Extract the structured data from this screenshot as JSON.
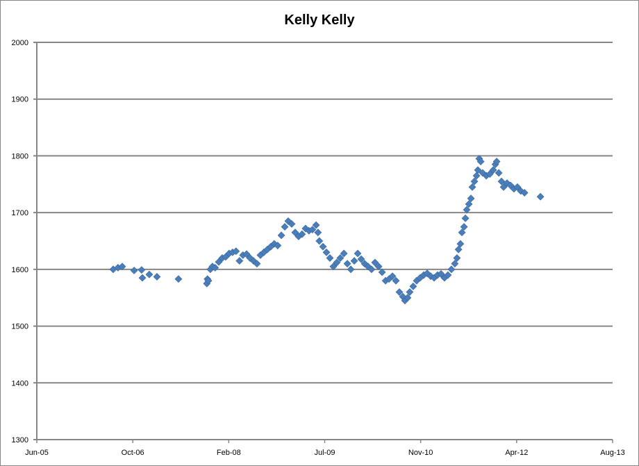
{
  "chart_data": {
    "type": "scatter",
    "title": "Kelly Kelly",
    "xlabel": "",
    "ylabel": "",
    "x_axis": {
      "type": "date",
      "min": "2005-06-01",
      "max": "2013-08-18",
      "major_unit_days": 500,
      "tick_labels": [
        "Jun-05",
        "Oct-06",
        "Feb-08",
        "Jul-09",
        "Nov-10",
        "Apr-12",
        "Aug-13"
      ]
    },
    "y_axis": {
      "min": 1300,
      "max": 2000,
      "major_unit": 100,
      "tick_labels": [
        "1300",
        "1400",
        "1500",
        "1600",
        "1700",
        "1800",
        "1900",
        "2000"
      ]
    },
    "grid": {
      "horizontal": true,
      "vertical": false
    },
    "legend": "none",
    "marker": "diamond",
    "colors": {
      "marker": "#4a7ebb",
      "marker_edge": "#3b679c",
      "grid": "#868686"
    },
    "points": [
      [
        "2006-07-04",
        1600
      ],
      [
        "2006-07-29",
        1603
      ],
      [
        "2006-08-20",
        1605
      ],
      [
        "2006-10-21",
        1598
      ],
      [
        "2006-11-29",
        1599
      ],
      [
        "2006-12-03",
        1585
      ],
      [
        "2007-01-08",
        1591
      ],
      [
        "2007-02-17",
        1587
      ],
      [
        "2007-06-09",
        1583
      ],
      [
        "2007-11-04",
        1575
      ],
      [
        "2007-11-07",
        1583
      ],
      [
        "2007-11-12",
        1580
      ],
      [
        "2007-11-22",
        1600
      ],
      [
        "2007-12-03",
        1605
      ],
      [
        "2007-12-17",
        1603
      ],
      [
        "2008-01-05",
        1613
      ],
      [
        "2008-01-23",
        1620
      ],
      [
        "2008-02-10",
        1622
      ],
      [
        "2008-02-28",
        1628
      ],
      [
        "2008-03-17",
        1630
      ],
      [
        "2008-04-04",
        1632
      ],
      [
        "2008-04-22",
        1615
      ],
      [
        "2008-05-10",
        1625
      ],
      [
        "2008-05-29",
        1627
      ],
      [
        "2008-06-16",
        1620
      ],
      [
        "2008-07-04",
        1615
      ],
      [
        "2008-07-22",
        1610
      ],
      [
        "2008-08-09",
        1625
      ],
      [
        "2008-08-27",
        1630
      ],
      [
        "2008-09-14",
        1635
      ],
      [
        "2008-10-02",
        1640
      ],
      [
        "2008-10-20",
        1645
      ],
      [
        "2008-11-07",
        1642
      ],
      [
        "2008-11-26",
        1660
      ],
      [
        "2008-12-14",
        1675
      ],
      [
        "2009-01-01",
        1685
      ],
      [
        "2009-01-19",
        1680
      ],
      [
        "2009-02-06",
        1665
      ],
      [
        "2009-02-24",
        1658
      ],
      [
        "2009-03-14",
        1662
      ],
      [
        "2009-04-01",
        1672
      ],
      [
        "2009-04-19",
        1668
      ],
      [
        "2009-05-07",
        1670
      ],
      [
        "2009-05-26",
        1678
      ],
      [
        "2009-06-05",
        1665
      ],
      [
        "2009-06-12",
        1650
      ],
      [
        "2009-07-01",
        1640
      ],
      [
        "2009-07-19",
        1630
      ],
      [
        "2009-08-06",
        1620
      ],
      [
        "2009-08-24",
        1605
      ],
      [
        "2009-09-11",
        1612
      ],
      [
        "2009-09-29",
        1620
      ],
      [
        "2009-10-18",
        1628
      ],
      [
        "2009-11-05",
        1610
      ],
      [
        "2009-11-23",
        1600
      ],
      [
        "2009-12-11",
        1615
      ],
      [
        "2009-12-29",
        1628
      ],
      [
        "2010-01-16",
        1618
      ],
      [
        "2010-02-03",
        1610
      ],
      [
        "2010-02-21",
        1605
      ],
      [
        "2010-03-11",
        1600
      ],
      [
        "2010-03-29",
        1612
      ],
      [
        "2010-04-17",
        1605
      ],
      [
        "2010-05-05",
        1595
      ],
      [
        "2010-05-23",
        1580
      ],
      [
        "2010-06-10",
        1583
      ],
      [
        "2010-06-28",
        1588
      ],
      [
        "2010-07-16",
        1580
      ],
      [
        "2010-08-03",
        1560
      ],
      [
        "2010-08-21",
        1552
      ],
      [
        "2010-09-01",
        1545
      ],
      [
        "2010-09-15",
        1550
      ],
      [
        "2010-09-26",
        1560
      ],
      [
        "2010-10-14",
        1570
      ],
      [
        "2010-11-01",
        1580
      ],
      [
        "2010-11-19",
        1585
      ],
      [
        "2010-12-08",
        1590
      ],
      [
        "2010-12-26",
        1593
      ],
      [
        "2011-01-13",
        1588
      ],
      [
        "2011-01-31",
        1585
      ],
      [
        "2011-02-18",
        1590
      ],
      [
        "2011-03-08",
        1592
      ],
      [
        "2011-03-26",
        1585
      ],
      [
        "2011-04-13",
        1590
      ],
      [
        "2011-05-01",
        1600
      ],
      [
        "2011-05-19",
        1610
      ],
      [
        "2011-05-30",
        1620
      ],
      [
        "2011-06-07",
        1635
      ],
      [
        "2011-06-17",
        1645
      ],
      [
        "2011-06-25",
        1665
      ],
      [
        "2011-07-06",
        1675
      ],
      [
        "2011-07-13",
        1690
      ],
      [
        "2011-07-20",
        1705
      ],
      [
        "2011-07-31",
        1715
      ],
      [
        "2011-08-11",
        1725
      ],
      [
        "2011-08-18",
        1745
      ],
      [
        "2011-08-29",
        1755
      ],
      [
        "2011-09-09",
        1765
      ],
      [
        "2011-09-16",
        1775
      ],
      [
        "2011-09-23",
        1795
      ],
      [
        "2011-10-01",
        1790
      ],
      [
        "2011-10-11",
        1770
      ],
      [
        "2011-10-30",
        1765
      ],
      [
        "2011-11-17",
        1768
      ],
      [
        "2011-12-05",
        1775
      ],
      [
        "2011-12-16",
        1785
      ],
      [
        "2011-12-23",
        1790
      ],
      [
        "2012-01-03",
        1770
      ],
      [
        "2012-01-17",
        1755
      ],
      [
        "2012-01-28",
        1745
      ],
      [
        "2012-02-15",
        1752
      ],
      [
        "2012-03-04",
        1748
      ],
      [
        "2012-03-22",
        1742
      ],
      [
        "2012-04-09",
        1745
      ],
      [
        "2012-04-27",
        1738
      ],
      [
        "2012-05-16",
        1735
      ],
      [
        "2012-08-07",
        1728
      ]
    ]
  }
}
